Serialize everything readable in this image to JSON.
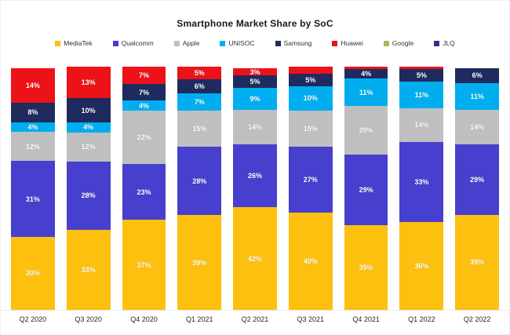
{
  "page": {
    "title": "Smartphone Market Share by SoC"
  },
  "chart_data": {
    "type": "bar",
    "stacked": true,
    "title": "Smartphone Market Share by SoC",
    "xlabel": "",
    "ylabel": "",
    "ylim": [
      0,
      100
    ],
    "grid": false,
    "legend_position": "top",
    "categories": [
      "Q2 2020",
      "Q3 2020",
      "Q4 2020",
      "Q1 2021",
      "Q2 2021",
      "Q3 2021",
      "Q4 2021",
      "Q1 2022",
      "Q2 2022"
    ],
    "series": [
      {
        "name": "MediaTek",
        "color": "#FDC00F",
        "values": [
          30,
          33,
          37,
          39,
          42,
          40,
          35,
          36,
          39
        ],
        "labels": [
          "30%",
          "33%",
          "37%",
          "39%",
          "42%",
          "40%",
          "35%",
          "36%",
          "39%"
        ]
      },
      {
        "name": "Qualcomm",
        "color": "#473FCD",
        "values": [
          31,
          28,
          23,
          28,
          26,
          27,
          29,
          33,
          29
        ],
        "labels": [
          "31%",
          "28%",
          "23%",
          "28%",
          "26%",
          "27%",
          "29%",
          "33%",
          "29%"
        ]
      },
      {
        "name": "Apple",
        "color": "#BFBFBF",
        "values": [
          12,
          12,
          22,
          15,
          14,
          15,
          20,
          14,
          14
        ],
        "labels": [
          "12%",
          "12%",
          "22%",
          "15%",
          "14%",
          "15%",
          "20%",
          "14%",
          "14%"
        ]
      },
      {
        "name": "UNISOC",
        "color": "#00AEEF",
        "values": [
          4,
          4,
          4,
          7,
          9,
          10,
          11,
          11,
          11
        ],
        "labels": [
          "4%",
          "4%",
          "4%",
          "7%",
          "9%",
          "10%",
          "11%",
          "11%",
          "11%"
        ]
      },
      {
        "name": "Samsung",
        "color": "#1F2A5E",
        "values": [
          8,
          10,
          7,
          6,
          5,
          5,
          4,
          5,
          6
        ],
        "labels": [
          "8%",
          "10%",
          "7%",
          "6%",
          "5%",
          "5%",
          "4%",
          "5%",
          "6%"
        ]
      },
      {
        "name": "Huawei",
        "color": "#EC1218",
        "values": [
          14,
          13,
          7,
          5,
          3,
          3,
          1,
          1,
          0
        ],
        "labels": [
          "14%",
          "13%",
          "7%",
          "5%",
          "3%",
          "",
          "",
          "",
          ""
        ]
      },
      {
        "name": "Google",
        "color": "#B1B562",
        "values": [
          0,
          0,
          0,
          0,
          0,
          0,
          0,
          0,
          0
        ],
        "labels": [
          "",
          "",
          "",
          "",
          "",
          "",
          "",
          "",
          ""
        ]
      },
      {
        "name": "JLQ",
        "color": "#2F3192",
        "values": [
          0,
          0,
          0,
          0,
          0,
          0,
          0,
          0,
          0
        ],
        "labels": [
          "",
          "",
          "",
          "",
          "",
          "",
          "",
          "",
          ""
        ]
      }
    ],
    "legend": [
      {
        "label": "MediaTek",
        "color": "#FDC00F"
      },
      {
        "label": "Qualcomm",
        "color": "#473FCD"
      },
      {
        "label": "Apple",
        "color": "#BFBFBF"
      },
      {
        "label": "UNISOC",
        "color": "#00AEEF"
      },
      {
        "label": "Samsung",
        "color": "#1F2A5E"
      },
      {
        "label": "Huawei",
        "color": "#EC1218"
      },
      {
        "label": "Google",
        "color": "#B1B562"
      },
      {
        "label": "JLQ",
        "color": "#2F3192"
      }
    ]
  }
}
